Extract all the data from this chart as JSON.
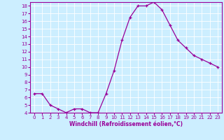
{
  "x": [
    0,
    1,
    2,
    3,
    4,
    5,
    6,
    7,
    8,
    9,
    10,
    11,
    12,
    13,
    14,
    15,
    16,
    17,
    18,
    19,
    20,
    21,
    22,
    23
  ],
  "y": [
    6.5,
    6.5,
    5.0,
    4.5,
    4.0,
    4.5,
    4.5,
    4.0,
    4.0,
    6.5,
    9.5,
    13.5,
    16.5,
    18.0,
    18.0,
    18.5,
    17.5,
    15.5,
    13.5,
    12.5,
    11.5,
    11.0,
    10.5,
    10.0
  ],
  "xlim": [
    -0.5,
    23.5
  ],
  "ylim": [
    4,
    18.5
  ],
  "yticks": [
    4,
    5,
    6,
    7,
    8,
    9,
    10,
    11,
    12,
    13,
    14,
    15,
    16,
    17,
    18
  ],
  "xticks": [
    0,
    1,
    2,
    3,
    4,
    5,
    6,
    7,
    8,
    9,
    10,
    11,
    12,
    13,
    14,
    15,
    16,
    17,
    18,
    19,
    20,
    21,
    22,
    23
  ],
  "xlabel": "Windchill (Refroidissement éolien,°C)",
  "line_color": "#990099",
  "marker": "+",
  "bg_color": "#cceeff",
  "grid_color": "#ffffff",
  "tick_label_color": "#990099",
  "axis_label_color": "#990099"
}
